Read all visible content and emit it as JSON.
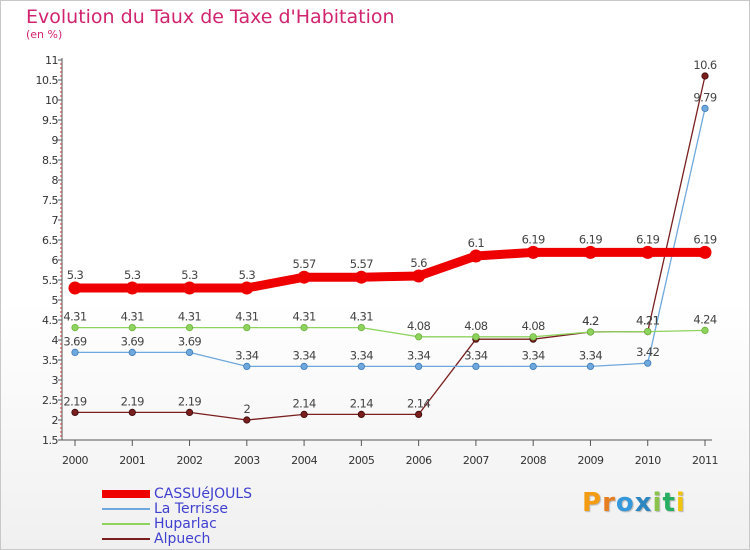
{
  "header": {
    "title": "Evolution du Taux de Taxe d'Habitation",
    "unit": "(en %)"
  },
  "chart_data": {
    "type": "line",
    "title": "Evolution du Taux de Taxe d'Habitation",
    "ylabel": "(en %)",
    "xlabel": "",
    "x": [
      "2000",
      "2001",
      "2002",
      "2003",
      "2004",
      "2005",
      "2006",
      "2007",
      "2008",
      "2009",
      "2010",
      "2011"
    ],
    "ylim": [
      1.5,
      11
    ],
    "yticks": [
      "1.5",
      "2",
      "2.5",
      "3",
      "3.5",
      "4",
      "4.5",
      "5",
      "5.5",
      "6",
      "6.5",
      "7",
      "7.5",
      "8",
      "8.5",
      "9",
      "9.5",
      "10",
      "10.5",
      "11"
    ],
    "series": [
      {
        "name": "CASSUéJOULS",
        "color": "#ee0000",
        "values": [
          5.3,
          5.3,
          5.3,
          5.3,
          5.57,
          5.57,
          5.6,
          6.1,
          6.19,
          6.19,
          6.19,
          6.19
        ],
        "labels": [
          "5.3",
          "5.3",
          "5.3",
          "5.3",
          "5.57",
          "5.57",
          "5.6",
          "6.1",
          "6.19",
          "6.19",
          "6.19",
          "6.19"
        ]
      },
      {
        "name": "La Terrisse",
        "color": "#6fa8dc",
        "values": [
          3.69,
          3.69,
          3.69,
          3.34,
          3.34,
          3.34,
          3.34,
          3.34,
          3.34,
          3.34,
          3.42,
          9.79
        ],
        "labels": [
          "3.69",
          "3.69",
          "3.69",
          "3.34",
          "3.34",
          "3.34",
          "3.34",
          "3.34",
          "3.34",
          "3.34",
          "3.42",
          "9.79"
        ]
      },
      {
        "name": "Huparlac",
        "color": "#8fd35f",
        "values": [
          4.31,
          4.31,
          4.31,
          4.31,
          4.31,
          4.31,
          4.08,
          4.08,
          4.08,
          4.2,
          4.21,
          4.24
        ],
        "labels": [
          "4.31",
          "4.31",
          "4.31",
          "4.31",
          "4.31",
          "4.31",
          "4.08",
          "4.08",
          "4.08",
          "4.2",
          "4.21",
          "4.24"
        ]
      },
      {
        "name": "Alpuech",
        "color": "#7a1e1e",
        "values": [
          2.19,
          2.19,
          2.19,
          2.0,
          2.14,
          2.14,
          2.14,
          4.02,
          4.02,
          4.2,
          4.21,
          10.6
        ],
        "labels": [
          "2.19",
          "2.19",
          "2.19",
          "2",
          "2.14",
          "2.14",
          "2.14",
          "",
          "",
          "4.2",
          "4.21",
          "10.6"
        ]
      }
    ],
    "legend": {
      "position": "bottom-left"
    },
    "grid": false
  },
  "logo": {
    "text": "Proxiti",
    "letters": [
      "P",
      "r",
      "o",
      "x",
      "i",
      "t",
      "i"
    ],
    "colors": [
      "#f39c12",
      "#e67e22",
      "#3498db",
      "#2e86c1",
      "#8bc34a",
      "#27ae60",
      "#f1c40f"
    ]
  }
}
